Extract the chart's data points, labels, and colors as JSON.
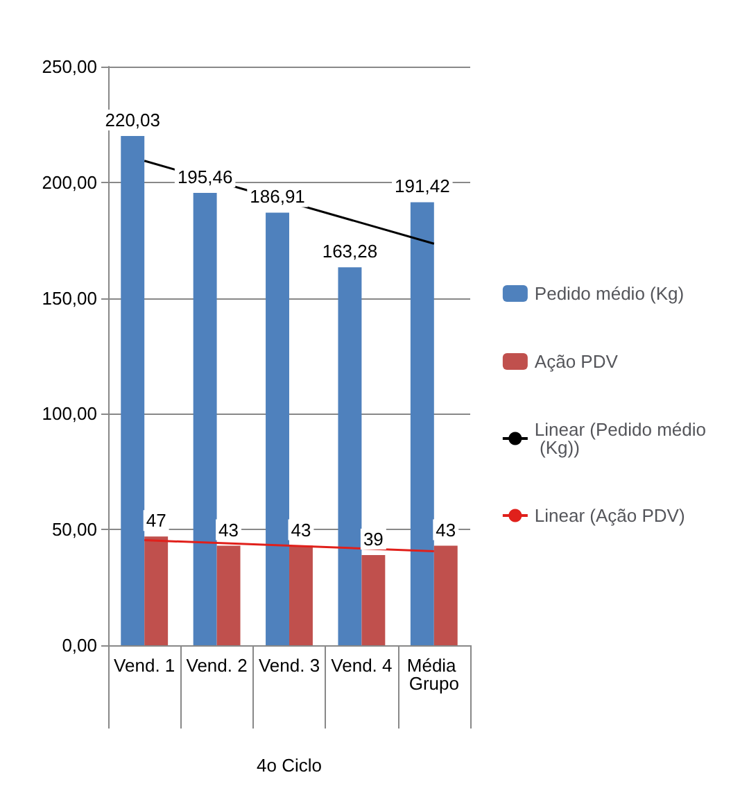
{
  "chart_data": {
    "type": "bar",
    "categories": [
      "Vend. 1",
      "Vend. 2",
      "Vend. 3",
      "Vend. 4",
      "Média Grupo"
    ],
    "xlabel": "4o Ciclo",
    "ylim": [
      0,
      250
    ],
    "yticks": [
      {
        "value": 0,
        "label": "0,00"
      },
      {
        "value": 50,
        "label": "50,00"
      },
      {
        "value": 100,
        "label": "100,00"
      },
      {
        "value": 150,
        "label": "150,00"
      },
      {
        "value": 200,
        "label": "200,00"
      },
      {
        "value": 250,
        "label": "250,00"
      }
    ],
    "grid": "y",
    "legend": "right",
    "marker": "none",
    "series": [
      {
        "name": "Pedido médio (Kg)",
        "color": "#4f81bd",
        "values": [
          220.03,
          195.46,
          186.91,
          163.28,
          191.42
        ],
        "value_labels": [
          "220,03",
          "195,46",
          "186,91",
          "163,28",
          "191,42"
        ]
      },
      {
        "name": "Ação PDV",
        "color": "#c0504d",
        "values": [
          47,
          43,
          43,
          39,
          43
        ],
        "value_labels": [
          "47",
          "43",
          "43",
          "39",
          "43"
        ]
      },
      {
        "name": "Linear (Pedido médio (Kg))",
        "type": "line",
        "line_style": "solid",
        "color": "#000000",
        "x": [
          "Vend. 1",
          "Média Grupo"
        ],
        "values": [
          209.3,
          173.5
        ]
      },
      {
        "name": "Linear (Ação PDV)",
        "type": "line",
        "line_style": "solid",
        "color": "#e0201b",
        "x": [
          "Vend. 1",
          "Média Grupo"
        ],
        "values": [
          45.4,
          40.6
        ]
      }
    ]
  }
}
